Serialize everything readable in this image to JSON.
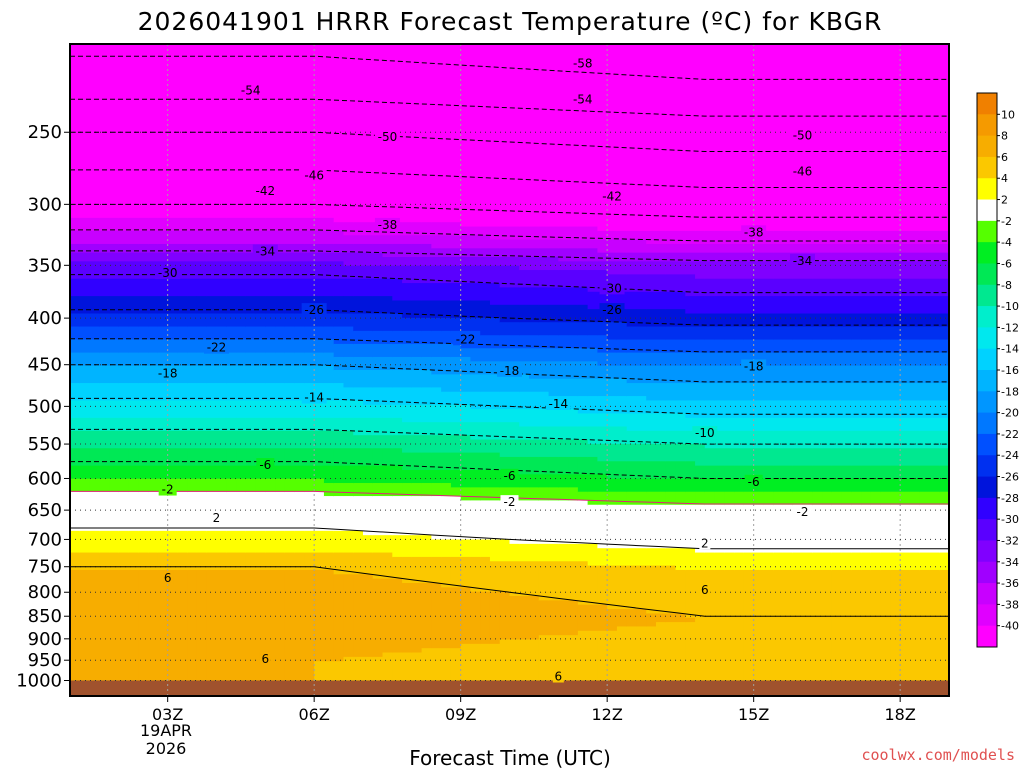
{
  "chart_data": {
    "type": "heatmap",
    "title": "2026041901 HRRR Forecast Temperature (ºC) for KBGR",
    "xlabel": "Forecast Time (UTC)",
    "ylabel": "",
    "x_range_hours": [
      1,
      19
    ],
    "x_ticks": [
      {
        "hour": 3,
        "label": "03Z"
      },
      {
        "hour": 6,
        "label": "06Z"
      },
      {
        "hour": 9,
        "label": "09Z"
      },
      {
        "hour": 12,
        "label": "12Z"
      },
      {
        "hour": 15,
        "label": "15Z"
      },
      {
        "hour": 18,
        "label": "18Z"
      }
    ],
    "date_label": [
      "19APR",
      "2026"
    ],
    "y_axis": "pressure (hPa), log scale, reversed",
    "y_range": [
      1040,
      200
    ],
    "y_ticks": [
      250,
      300,
      350,
      400,
      450,
      500,
      550,
      600,
      650,
      700,
      750,
      800,
      850,
      900,
      950,
      1000
    ],
    "grid": "dotted, on",
    "temperature_profile_initial": [
      {
        "p": 200,
        "t": -59
      },
      {
        "p": 225,
        "t": -55
      },
      {
        "p": 250,
        "t": -50
      },
      {
        "p": 275,
        "t": -46
      },
      {
        "p": 300,
        "t": -42
      },
      {
        "p": 325,
        "t": -37
      },
      {
        "p": 350,
        "t": -31
      },
      {
        "p": 400,
        "t": -25
      },
      {
        "p": 450,
        "t": -18
      },
      {
        "p": 500,
        "t": -13
      },
      {
        "p": 550,
        "t": -8
      },
      {
        "p": 600,
        "t": -4
      },
      {
        "p": 640,
        "t": 0
      },
      {
        "p": 700,
        "t": 3
      },
      {
        "p": 750,
        "t": 6
      },
      {
        "p": 800,
        "t": 7
      },
      {
        "p": 850,
        "t": 8
      },
      {
        "p": 900,
        "t": 7
      },
      {
        "p": 950,
        "t": 6
      },
      {
        "p": 1000,
        "t": 6
      }
    ],
    "profile_time_adjust": [
      {
        "hour": 1,
        "dt": 0
      },
      {
        "hour": 6,
        "dt": 0
      },
      {
        "hour": 10,
        "dt": -1
      },
      {
        "hour": 14,
        "dt": -2
      },
      {
        "hour": 19,
        "dt": -2
      }
    ],
    "contour_labels": [
      {
        "hour": 11.5,
        "p": 210,
        "label": "-58"
      },
      {
        "hour": 4.7,
        "p": 225,
        "label": "-54"
      },
      {
        "hour": 11.5,
        "p": 230,
        "label": "-54"
      },
      {
        "hour": 7.5,
        "p": 253,
        "label": "-50"
      },
      {
        "hour": 16.0,
        "p": 252,
        "label": "-50"
      },
      {
        "hour": 6.0,
        "p": 279,
        "label": "-46"
      },
      {
        "hour": 16.0,
        "p": 276,
        "label": "-46"
      },
      {
        "hour": 5.0,
        "p": 290,
        "label": "-42"
      },
      {
        "hour": 12.1,
        "p": 294,
        "label": "-42"
      },
      {
        "hour": 7.5,
        "p": 316,
        "label": "-38"
      },
      {
        "hour": 15.0,
        "p": 322,
        "label": "-38"
      },
      {
        "hour": 5.0,
        "p": 338,
        "label": "-34"
      },
      {
        "hour": 16.0,
        "p": 346,
        "label": "-34"
      },
      {
        "hour": 3.0,
        "p": 357,
        "label": "-30"
      },
      {
        "hour": 12.1,
        "p": 371,
        "label": "-30"
      },
      {
        "hour": 6.0,
        "p": 392,
        "label": "-26"
      },
      {
        "hour": 12.1,
        "p": 392,
        "label": "-26"
      },
      {
        "hour": 4.0,
        "p": 431,
        "label": "-22"
      },
      {
        "hour": 9.1,
        "p": 422,
        "label": "-22"
      },
      {
        "hour": 3.0,
        "p": 460,
        "label": "-18"
      },
      {
        "hour": 10.0,
        "p": 457,
        "label": "-18"
      },
      {
        "hour": 15.0,
        "p": 452,
        "label": "-18"
      },
      {
        "hour": 6.0,
        "p": 489,
        "label": "-14"
      },
      {
        "hour": 11.0,
        "p": 497,
        "label": "-14"
      },
      {
        "hour": 14.0,
        "p": 535,
        "label": "-10"
      },
      {
        "hour": 5.0,
        "p": 580,
        "label": "-6"
      },
      {
        "hour": 10.0,
        "p": 596,
        "label": "-6"
      },
      {
        "hour": 15.0,
        "p": 605,
        "label": "-6"
      },
      {
        "hour": 3.0,
        "p": 617,
        "label": "-2"
      },
      {
        "hour": 10.0,
        "p": 637,
        "label": "-2"
      },
      {
        "hour": 16.0,
        "p": 653,
        "label": "-2"
      },
      {
        "hour": 4.0,
        "p": 663,
        "label": "2"
      },
      {
        "hour": 14.0,
        "p": 707,
        "label": "2"
      },
      {
        "hour": 3.0,
        "p": 772,
        "label": "6"
      },
      {
        "hour": 14.0,
        "p": 795,
        "label": "6"
      },
      {
        "hour": 5.0,
        "p": 947,
        "label": "6"
      },
      {
        "hour": 11.0,
        "p": 990,
        "label": "6"
      }
    ],
    "colorbar": {
      "ticks": [
        "10",
        "8",
        "6",
        "4",
        "2",
        "-2",
        "-4",
        "-6",
        "-8",
        "-10",
        "-12",
        "-14",
        "-16",
        "-18",
        "-20",
        "-22",
        "-24",
        "-26",
        "-28",
        "-30",
        "-32",
        "-34",
        "-36",
        "-38",
        "-40"
      ],
      "bins": [
        {
          "min": 10,
          "max": 12,
          "color": "#f08000"
        },
        {
          "min": 8,
          "max": 10,
          "color": "#f59a00"
        },
        {
          "min": 6,
          "max": 8,
          "color": "#f7ad00"
        },
        {
          "min": 4,
          "max": 6,
          "color": "#fbc800"
        },
        {
          "min": 2,
          "max": 4,
          "color": "#ffff00"
        },
        {
          "min": -2,
          "max": 2,
          "color": "#ffffff"
        },
        {
          "min": -4,
          "max": -2,
          "color": "#55ff00"
        },
        {
          "min": -6,
          "max": -4,
          "color": "#00ee22"
        },
        {
          "min": -8,
          "max": -6,
          "color": "#00e855"
        },
        {
          "min": -10,
          "max": -8,
          "color": "#00e890"
        },
        {
          "min": -12,
          "max": -10,
          "color": "#00eecc"
        },
        {
          "min": -14,
          "max": -12,
          "color": "#00e8ee"
        },
        {
          "min": -16,
          "max": -14,
          "color": "#00d2ff"
        },
        {
          "min": -18,
          "max": -16,
          "color": "#00b4ff"
        },
        {
          "min": -20,
          "max": -18,
          "color": "#0096ff"
        },
        {
          "min": -22,
          "max": -20,
          "color": "#0078ff"
        },
        {
          "min": -24,
          "max": -22,
          "color": "#0050ff"
        },
        {
          "min": -26,
          "max": -24,
          "color": "#0030f0"
        },
        {
          "min": -28,
          "max": -26,
          "color": "#0014dc"
        },
        {
          "min": -30,
          "max": -28,
          "color": "#3000ff"
        },
        {
          "min": -32,
          "max": -30,
          "color": "#5a00ff"
        },
        {
          "min": -34,
          "max": -32,
          "color": "#8000ff"
        },
        {
          "min": -36,
          "max": -34,
          "color": "#a000ff"
        },
        {
          "min": -38,
          "max": -36,
          "color": "#c800ff"
        },
        {
          "min": -40,
          "max": -38,
          "color": "#e000ff"
        },
        {
          "min": -70,
          "max": -40,
          "color": "#ff00ff"
        }
      ]
    },
    "ground_color": "#a0522d"
  },
  "credit": "coolwx.com/models",
  "credit_color": "#e05050"
}
